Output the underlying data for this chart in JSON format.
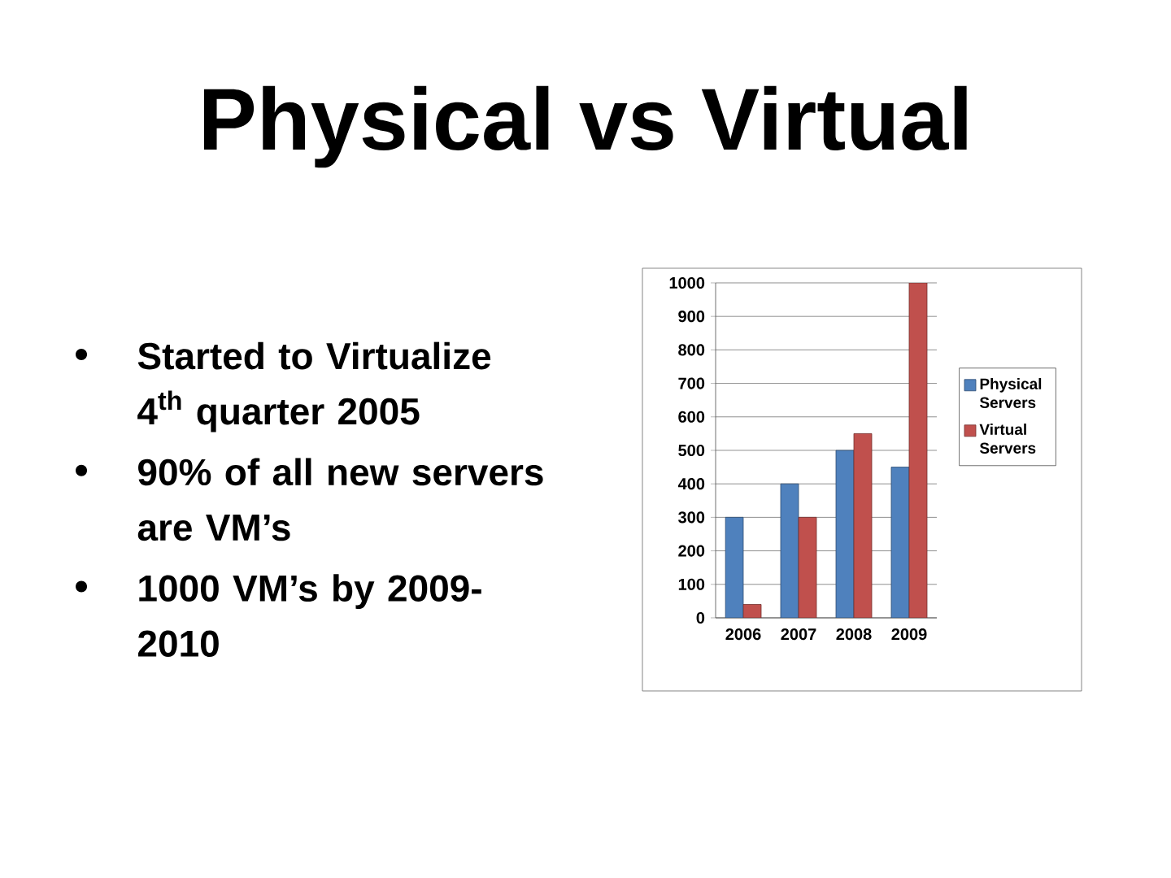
{
  "chart_data": {
    "type": "bar",
    "title": "Physical vs Virtual",
    "annotations": [
      "Started to Virtualize 4$^{th}$ quarter 2005",
      "90% of all new servers are VM’s",
      "1000 VM’s by 2009-2010"
    ],
    "categories": [
      "2006",
      "2007",
      "2008",
      "2009"
    ],
    "series": [
      {
        "name": "Physical Servers",
        "color": "#4f81bd",
        "values": [
          300,
          400,
          500,
          450
        ]
      },
      {
        "name": "Virtual Servers",
        "color": "#c0504d",
        "values": [
          40,
          300,
          550,
          1000
        ]
      }
    ],
    "ylim": [
      0,
      1000
    ],
    "yticks": [
      0,
      100,
      200,
      300,
      400,
      500,
      600,
      700,
      800,
      900,
      1000
    ],
    "grid": "y",
    "legend": "right"
  }
}
